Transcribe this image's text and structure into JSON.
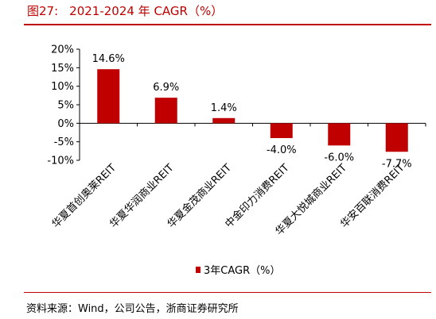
{
  "figure": {
    "title_prefix": "图27:",
    "title_text": "2021-2024 年 CAGR（%）",
    "source": "资料来源：Wind，公司公告，浙商证券研究所"
  },
  "colors": {
    "bar": "#c00000",
    "title": "#c00000",
    "rule": "#c00000",
    "axis": "#000000"
  },
  "chart_data": {
    "type": "bar",
    "categories": [
      "华夏首创奥莱REIT",
      "华夏华润商业REIT",
      "华夏金茂商业REIT",
      "中金印力消费REIT",
      "华夏大悦城商业REIT",
      "华安百联消费REIT"
    ],
    "series": [
      {
        "name": "3年CAGR（%）",
        "values": [
          14.6,
          6.9,
          1.4,
          -4.0,
          -6.0,
          -7.7
        ]
      }
    ],
    "data_labels": [
      "14.6%",
      "6.9%",
      "1.4%",
      "-4.0%",
      "-6.0%",
      "-7.7%"
    ],
    "ytick_labels": [
      "20%",
      "15%",
      "10%",
      "5%",
      "0%",
      "-5%",
      "-10%"
    ],
    "yticks": [
      20,
      15,
      10,
      5,
      0,
      -5,
      -10
    ],
    "ylim": [
      -10,
      20
    ],
    "grid": false,
    "legend_position": "bottom-center"
  }
}
